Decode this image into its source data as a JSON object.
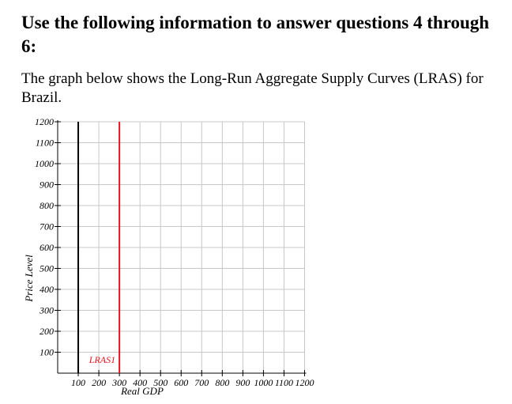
{
  "heading": "Use the following information to answer questions 4 through 6:",
  "intro": "The graph below shows the Long-Run Aggregate Supply Curves (LRAS) for Brazil.",
  "chart_data": {
    "type": "line",
    "title": "",
    "xlabel": "Real GDP",
    "ylabel": "Price Level",
    "xlim": [
      0,
      1200
    ],
    "ylim": [
      0,
      1200
    ],
    "xticks": [
      100,
      200,
      300,
      400,
      500,
      600,
      700,
      800,
      900,
      1000,
      1100,
      1200
    ],
    "xtick_labels": [
      "100",
      "200",
      "300",
      "400",
      "500",
      "600",
      "700",
      "800",
      "900",
      "1000",
      "1100",
      "1200"
    ],
    "yticks": [
      100,
      200,
      300,
      400,
      500,
      600,
      700,
      800,
      900,
      1000,
      1100,
      1200
    ],
    "ytick_labels": [
      "100",
      "200",
      "300",
      "400",
      "500",
      "600",
      "700",
      "800",
      "900",
      "1000",
      "1100",
      "1200"
    ],
    "grid": true,
    "series": [
      {
        "name": "",
        "color": "#000000",
        "x": [
          100,
          100
        ],
        "y": [
          0,
          1200
        ]
      },
      {
        "name": "LRAS1",
        "color": "#e8141c",
        "x": [
          300,
          300
        ],
        "y": [
          0,
          1200
        ]
      }
    ]
  }
}
